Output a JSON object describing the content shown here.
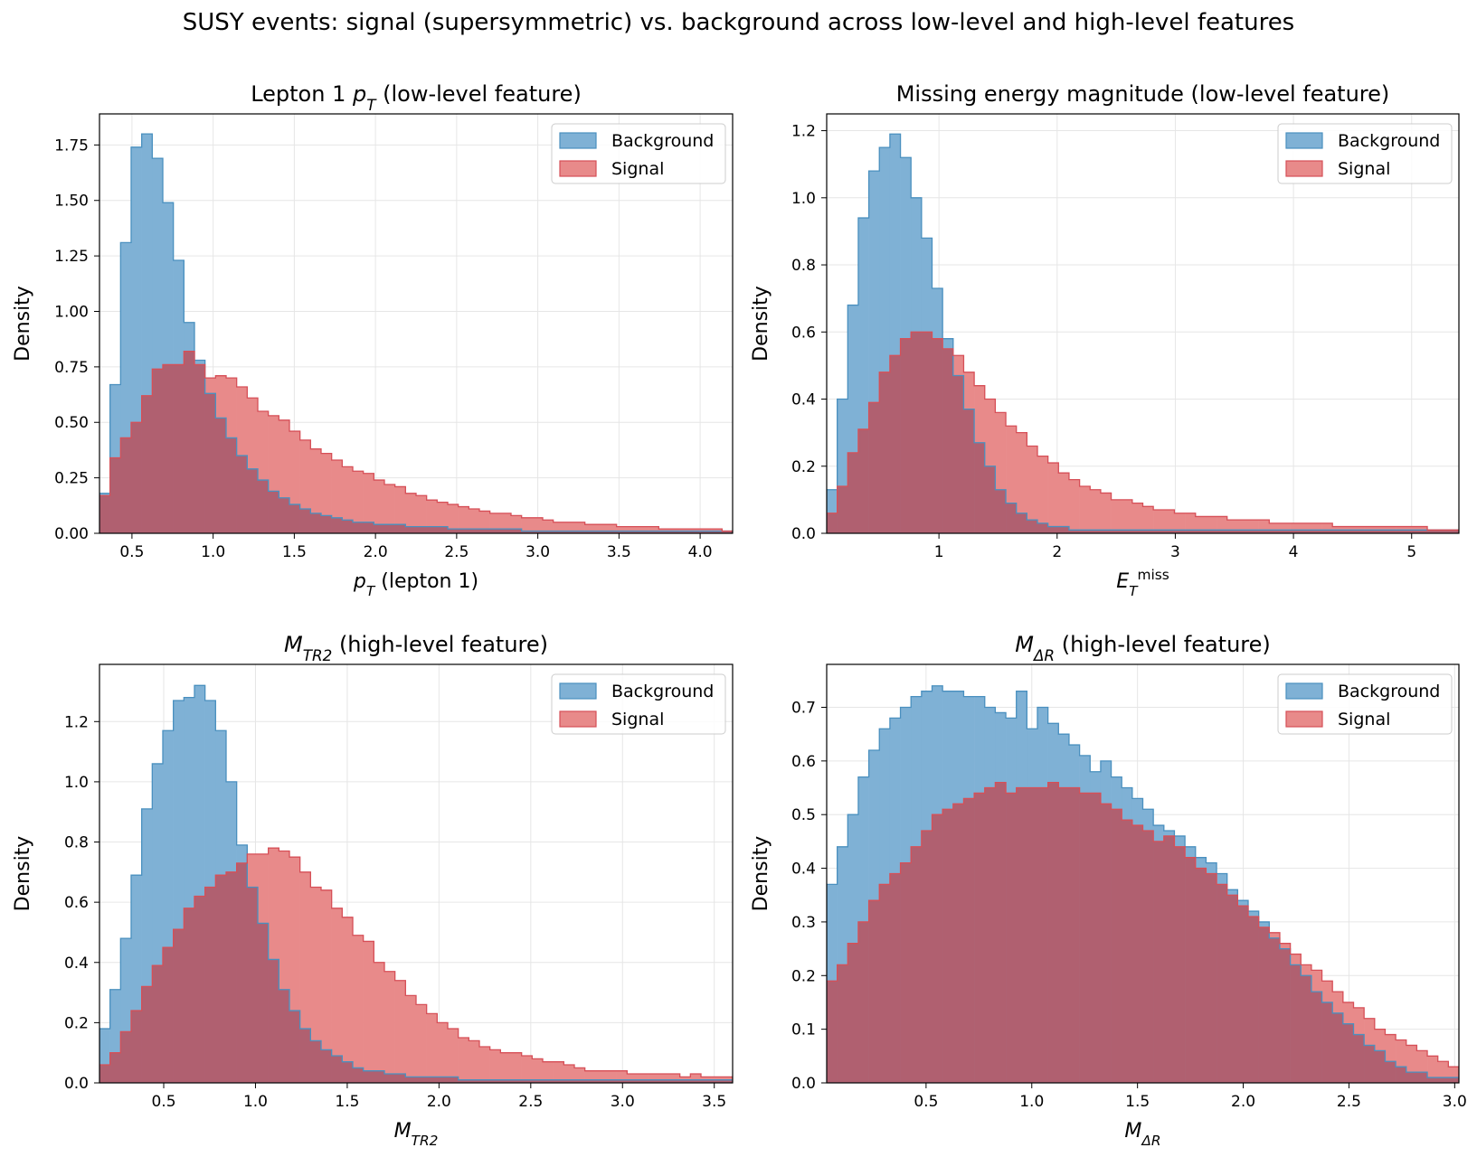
{
  "suptitle": "SUSY events: signal (supersymmetric) vs. background across low-level and high-level features",
  "colors": {
    "background_fill": "#7fb1d5",
    "background_edge": "#4a90bf",
    "signal_fill": "#e88a8a",
    "signal_edge": "#d64f57",
    "overlap_fill": "#b06070",
    "grid": "#e6e6e6"
  },
  "chart_data": [
    {
      "type": "histogram",
      "title_main": "Lepton 1 ",
      "title_math": "p",
      "title_sub": "T",
      "title_rest": " (low-level feature)",
      "xlabel_math": "p",
      "xlabel_sub": "T",
      "xlabel_rest": " (lepton 1)",
      "ylabel": "Density",
      "xlim": [
        0.3,
        4.2
      ],
      "ylim": [
        0,
        1.89
      ],
      "xticks": [
        0.5,
        1.0,
        1.5,
        2.0,
        2.5,
        3.0,
        3.5,
        4.0
      ],
      "xticklabels": [
        "0.5",
        "1.0",
        "1.5",
        "2.0",
        "2.5",
        "3.0",
        "3.5",
        "4.0"
      ],
      "yticks": [
        0,
        0.25,
        0.5,
        0.75,
        1.0,
        1.25,
        1.5,
        1.75
      ],
      "yticklabels": [
        "0.00",
        "0.25",
        "0.50",
        "0.75",
        "1.00",
        "1.25",
        "1.50",
        "1.75"
      ],
      "bins": [
        0.3,
        4.2
      ],
      "legend": [
        "Background",
        "Signal"
      ],
      "legend_loc": "upper right",
      "series": [
        {
          "name": "Background",
          "values": [
            0.18,
            0.67,
            1.31,
            1.74,
            1.8,
            1.69,
            1.49,
            1.23,
            0.95,
            0.78,
            0.63,
            0.52,
            0.43,
            0.35,
            0.29,
            0.24,
            0.19,
            0.16,
            0.13,
            0.11,
            0.09,
            0.08,
            0.07,
            0.06,
            0.05,
            0.05,
            0.04,
            0.04,
            0.04,
            0.03,
            0.03,
            0.03,
            0.03,
            0.02,
            0.02,
            0.02,
            0.02,
            0.02,
            0.02,
            0.02,
            0.01,
            0.01,
            0.01,
            0.01,
            0.01,
            0.01,
            0.01,
            0.01,
            0.01,
            0.01,
            0.01,
            0.01,
            0.01,
            0.01,
            0.01,
            0.01,
            0.01,
            0.01,
            0.01,
            0.01
          ]
        },
        {
          "name": "Signal",
          "values": [
            0.17,
            0.34,
            0.43,
            0.5,
            0.62,
            0.74,
            0.76,
            0.76,
            0.82,
            0.76,
            0.7,
            0.71,
            0.7,
            0.66,
            0.61,
            0.55,
            0.53,
            0.51,
            0.46,
            0.42,
            0.38,
            0.36,
            0.33,
            0.3,
            0.28,
            0.27,
            0.24,
            0.22,
            0.21,
            0.18,
            0.17,
            0.15,
            0.14,
            0.13,
            0.12,
            0.11,
            0.1,
            0.09,
            0.09,
            0.08,
            0.07,
            0.07,
            0.06,
            0.05,
            0.05,
            0.05,
            0.04,
            0.04,
            0.04,
            0.03,
            0.03,
            0.03,
            0.03,
            0.02,
            0.02,
            0.02,
            0.02,
            0.02,
            0.02,
            0.01
          ]
        }
      ]
    },
    {
      "type": "histogram",
      "title_main": "Missing energy magnitude (low-level feature)",
      "title_math": "",
      "title_sub": "",
      "title_rest": "",
      "xlabel_math": "E",
      "xlabel_sub": "T",
      "xlabel_sup": "miss",
      "xlabel_rest": "",
      "ylabel": "Density",
      "xlim": [
        0.05,
        5.4
      ],
      "ylim": [
        0,
        1.25
      ],
      "xticks": [
        1,
        2,
        3,
        4,
        5
      ],
      "xticklabels": [
        "1",
        "2",
        "3",
        "4",
        "5"
      ],
      "yticks": [
        0,
        0.2,
        0.4,
        0.6,
        0.8,
        1.0,
        1.2
      ],
      "yticklabels": [
        "0.0",
        "0.2",
        "0.4",
        "0.6",
        "0.8",
        "1.0",
        "1.2"
      ],
      "bins": [
        0.05,
        5.4
      ],
      "legend": [
        "Background",
        "Signal"
      ],
      "legend_loc": "upper right",
      "series": [
        {
          "name": "Background",
          "values": [
            0.13,
            0.4,
            0.68,
            0.94,
            1.08,
            1.15,
            1.19,
            1.12,
            1.0,
            0.88,
            0.73,
            0.58,
            0.47,
            0.37,
            0.27,
            0.2,
            0.13,
            0.09,
            0.06,
            0.04,
            0.03,
            0.02,
            0.02,
            0.01,
            0.01,
            0.01,
            0.01,
            0.01,
            0.01,
            0.01,
            0.01,
            0.01,
            0.01,
            0.01,
            0.01,
            0.01,
            0.01,
            0.01,
            0.01,
            0.01,
            0.01,
            0.01,
            0.01,
            0.01,
            0.01,
            0.01,
            0.01,
            0.01,
            0.01,
            0.01,
            0.01,
            0.01,
            0.01,
            0.01,
            0.01,
            0.01,
            0.01,
            0.01,
            0.01,
            0.01
          ]
        },
        {
          "name": "Signal",
          "values": [
            0.06,
            0.14,
            0.24,
            0.31,
            0.39,
            0.48,
            0.53,
            0.58,
            0.6,
            0.6,
            0.58,
            0.55,
            0.53,
            0.48,
            0.44,
            0.4,
            0.36,
            0.32,
            0.3,
            0.26,
            0.23,
            0.21,
            0.18,
            0.16,
            0.14,
            0.13,
            0.12,
            0.1,
            0.1,
            0.09,
            0.08,
            0.07,
            0.07,
            0.06,
            0.06,
            0.05,
            0.05,
            0.05,
            0.04,
            0.04,
            0.04,
            0.04,
            0.03,
            0.03,
            0.03,
            0.03,
            0.03,
            0.03,
            0.02,
            0.02,
            0.02,
            0.02,
            0.02,
            0.02,
            0.02,
            0.02,
            0.02,
            0.01,
            0.01,
            0.01
          ]
        }
      ]
    },
    {
      "type": "histogram",
      "title_main": "",
      "title_math": "M",
      "title_sub": "TR2",
      "title_rest": " (high-level feature)",
      "xlabel_math": "M",
      "xlabel_sub": "TR2",
      "xlabel_rest": "",
      "ylabel": "Density",
      "xlim": [
        0.15,
        3.6
      ],
      "ylim": [
        0,
        1.39
      ],
      "xticks": [
        0.5,
        1.0,
        1.5,
        2.0,
        2.5,
        3.0,
        3.5
      ],
      "xticklabels": [
        "0.5",
        "1.0",
        "1.5",
        "2.0",
        "2.5",
        "3.0",
        "3.5"
      ],
      "yticks": [
        0,
        0.2,
        0.4,
        0.6,
        0.8,
        1.0,
        1.2
      ],
      "yticklabels": [
        "0.0",
        "0.2",
        "0.4",
        "0.6",
        "0.8",
        "1.0",
        "1.2"
      ],
      "bins": [
        0.15,
        3.6
      ],
      "legend": [
        "Background",
        "Signal"
      ],
      "legend_loc": "upper right",
      "series": [
        {
          "name": "Background",
          "values": [
            0.18,
            0.31,
            0.48,
            0.69,
            0.91,
            1.06,
            1.17,
            1.27,
            1.28,
            1.32,
            1.27,
            1.17,
            1.0,
            0.79,
            0.65,
            0.53,
            0.41,
            0.31,
            0.24,
            0.18,
            0.14,
            0.11,
            0.09,
            0.07,
            0.05,
            0.04,
            0.04,
            0.03,
            0.03,
            0.02,
            0.02,
            0.02,
            0.02,
            0.02,
            0.01,
            0.01,
            0.01,
            0.01,
            0.01,
            0.01,
            0.01,
            0.01,
            0.01,
            0.01,
            0.01,
            0.01,
            0.01,
            0.01,
            0.01,
            0.01,
            0.01,
            0.01,
            0.01,
            0.01,
            0.01,
            0.01,
            0.01,
            0.01,
            0.01,
            0.01
          ]
        },
        {
          "name": "Signal",
          "values": [
            0.06,
            0.1,
            0.17,
            0.24,
            0.32,
            0.39,
            0.45,
            0.51,
            0.58,
            0.62,
            0.65,
            0.69,
            0.7,
            0.73,
            0.76,
            0.76,
            0.78,
            0.77,
            0.75,
            0.7,
            0.65,
            0.64,
            0.58,
            0.55,
            0.49,
            0.47,
            0.4,
            0.37,
            0.34,
            0.29,
            0.26,
            0.23,
            0.2,
            0.18,
            0.15,
            0.14,
            0.12,
            0.11,
            0.1,
            0.1,
            0.09,
            0.08,
            0.07,
            0.07,
            0.06,
            0.05,
            0.04,
            0.04,
            0.04,
            0.04,
            0.03,
            0.03,
            0.03,
            0.03,
            0.03,
            0.02,
            0.03,
            0.02,
            0.02,
            0.02
          ]
        }
      ]
    },
    {
      "type": "histogram",
      "title_main": "",
      "title_math": "M",
      "title_sub": "ΔR",
      "title_rest": " (high-level feature)",
      "xlabel_math": "M",
      "xlabel_sub": "ΔR",
      "xlabel_rest": "",
      "ylabel": "Density",
      "xlim": [
        0.03,
        3.02
      ],
      "ylim": [
        0,
        0.78
      ],
      "xticks": [
        0.5,
        1.0,
        1.5,
        2.0,
        2.5,
        3.0
      ],
      "xticklabels": [
        "0.5",
        "1.0",
        "1.5",
        "2.0",
        "2.5",
        "3.0"
      ],
      "yticks": [
        0,
        0.1,
        0.2,
        0.3,
        0.4,
        0.5,
        0.6,
        0.7
      ],
      "yticklabels": [
        "0.0",
        "0.1",
        "0.2",
        "0.3",
        "0.4",
        "0.5",
        "0.6",
        "0.7"
      ],
      "bins": [
        0.03,
        3.02
      ],
      "legend": [
        "Background",
        "Signal"
      ],
      "legend_loc": "upper right",
      "series": [
        {
          "name": "Background",
          "values": [
            0.37,
            0.44,
            0.5,
            0.57,
            0.62,
            0.66,
            0.68,
            0.7,
            0.72,
            0.73,
            0.74,
            0.73,
            0.73,
            0.72,
            0.72,
            0.7,
            0.69,
            0.68,
            0.73,
            0.66,
            0.7,
            0.67,
            0.65,
            0.63,
            0.61,
            0.58,
            0.6,
            0.57,
            0.55,
            0.53,
            0.51,
            0.48,
            0.47,
            0.46,
            0.44,
            0.42,
            0.41,
            0.39,
            0.36,
            0.34,
            0.32,
            0.3,
            0.27,
            0.25,
            0.22,
            0.2,
            0.17,
            0.15,
            0.13,
            0.11,
            0.09,
            0.07,
            0.06,
            0.04,
            0.03,
            0.02,
            0.02,
            0.01,
            0.01,
            0.01
          ]
        },
        {
          "name": "Signal",
          "values": [
            0.19,
            0.22,
            0.26,
            0.3,
            0.34,
            0.37,
            0.39,
            0.41,
            0.44,
            0.47,
            0.5,
            0.51,
            0.52,
            0.53,
            0.54,
            0.55,
            0.56,
            0.54,
            0.55,
            0.55,
            0.55,
            0.56,
            0.55,
            0.55,
            0.54,
            0.54,
            0.52,
            0.51,
            0.49,
            0.48,
            0.47,
            0.45,
            0.46,
            0.44,
            0.42,
            0.4,
            0.39,
            0.37,
            0.35,
            0.33,
            0.31,
            0.29,
            0.28,
            0.26,
            0.24,
            0.22,
            0.21,
            0.19,
            0.17,
            0.15,
            0.14,
            0.12,
            0.1,
            0.09,
            0.08,
            0.07,
            0.06,
            0.05,
            0.04,
            0.03
          ]
        }
      ]
    }
  ]
}
